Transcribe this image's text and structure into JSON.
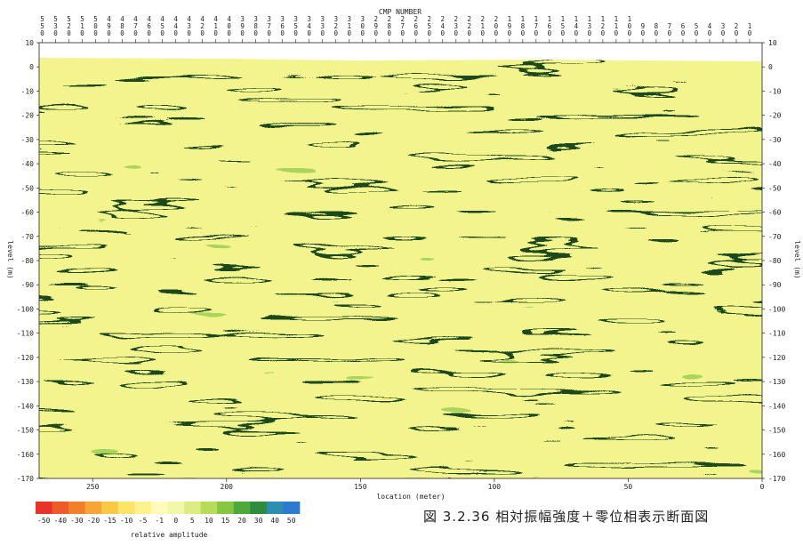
{
  "chart_data": {
    "type": "heatmap",
    "title": "CMP NUMBER",
    "xlabel": "location (meter)",
    "ylabel_left": "level (m)",
    "ylabel_right": "level (m)",
    "x_range": [
      270,
      0
    ],
    "y_range": [
      -170,
      10
    ],
    "x_ticks": [
      250,
      200,
      150,
      100,
      50,
      0
    ],
    "y_ticks": [
      10,
      0,
      -10,
      -20,
      -30,
      -40,
      -50,
      -60,
      -70,
      -80,
      -90,
      -100,
      -110,
      -120,
      -130,
      -140,
      -150,
      -160,
      -170
    ],
    "cmp_numbers": [
      "550",
      "530",
      "520",
      "510",
      "500",
      "490",
      "480",
      "470",
      "460",
      "450",
      "440",
      "430",
      "420",
      "410",
      "400",
      "390",
      "380",
      "370",
      "360",
      "350",
      "340",
      "330",
      "320",
      "310",
      "300",
      "290",
      "280",
      "270",
      "260",
      "250",
      "240",
      "230",
      "220",
      "210",
      "200",
      "190",
      "180",
      "170",
      "160",
      "150",
      "140",
      "130",
      "120",
      "110",
      "100",
      "90",
      "80",
      "70",
      "60",
      "50",
      "40",
      "30",
      "20",
      "10"
    ],
    "colorbar": {
      "label": "relative amplitude",
      "tick_labels": [
        "-50",
        "-40",
        "-30",
        "-20",
        "-15",
        "-10",
        "-5",
        "-1",
        "0",
        "5",
        "10",
        "15",
        "20",
        "30",
        "40",
        "50"
      ],
      "colors": [
        "#e8332a",
        "#ee5a2a",
        "#f27f2c",
        "#f7a537",
        "#fbc846",
        "#fde366",
        "#fff28c",
        "#fffbbb",
        "#f3f7a8",
        "#dcec82",
        "#b6dc5a",
        "#86c640",
        "#4fa83a",
        "#2e8c3c",
        "#2c8fb0",
        "#2b7ad0"
      ]
    },
    "caption": "図 3.2.36 相対振幅強度＋零位相表示断面図"
  }
}
